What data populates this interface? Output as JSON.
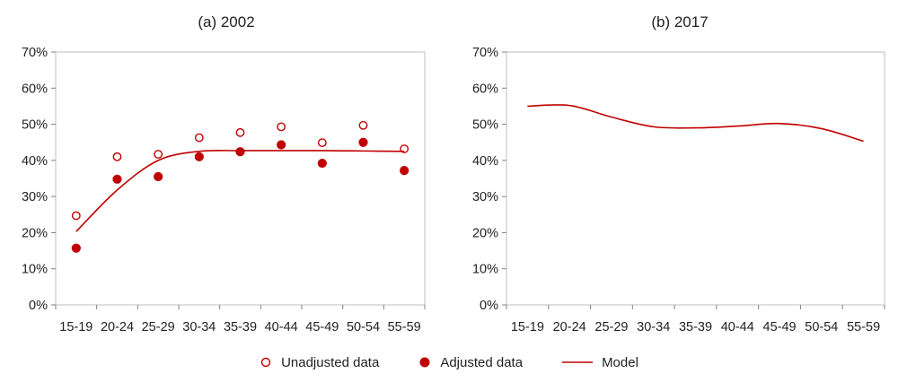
{
  "colors": {
    "series": "#c00000",
    "frame": "#bfbfbf",
    "axis": "#808080"
  },
  "chart_data": [
    {
      "type": "scatter",
      "title": "(a) 2002",
      "xlabel": "",
      "ylabel": "",
      "ylim": [
        0,
        0.7
      ],
      "y_ticks": [
        "0%",
        "10%",
        "20%",
        "30%",
        "40%",
        "50%",
        "60%",
        "70%"
      ],
      "categories": [
        "15-19",
        "20-24",
        "25-29",
        "30-34",
        "35-39",
        "40-44",
        "45-49",
        "50-54",
        "55-59"
      ],
      "grid": false,
      "series": [
        {
          "name": "Unadjusted data",
          "style": "open-marker",
          "values": [
            0.247,
            0.41,
            0.417,
            0.463,
            0.477,
            0.493,
            0.449,
            0.497,
            0.432
          ]
        },
        {
          "name": "Adjusted data",
          "style": "filled-marker",
          "values": [
            0.157,
            0.348,
            0.355,
            0.41,
            0.424,
            0.443,
            0.392,
            0.45,
            0.372
          ]
        },
        {
          "name": "Model",
          "style": "line",
          "values": [
            0.203,
            0.318,
            0.4,
            0.425,
            0.427,
            0.427,
            0.427,
            0.426,
            0.425
          ]
        }
      ]
    },
    {
      "type": "line",
      "title": "(b) 2017",
      "xlabel": "",
      "ylabel": "",
      "ylim": [
        0,
        0.7
      ],
      "y_ticks": [
        "0%",
        "10%",
        "20%",
        "30%",
        "40%",
        "50%",
        "60%",
        "70%"
      ],
      "categories": [
        "15-19",
        "20-24",
        "25-29",
        "30-34",
        "35-39",
        "40-44",
        "45-49",
        "50-54",
        "55-59"
      ],
      "grid": false,
      "series": [
        {
          "name": "Model",
          "style": "line",
          "values": [
            0.55,
            0.552,
            0.52,
            0.493,
            0.49,
            0.495,
            0.502,
            0.488,
            0.453
          ]
        }
      ]
    }
  ],
  "legend": {
    "position": "bottom-center",
    "items": [
      {
        "label": "Unadjusted data",
        "marker": "open-circle"
      },
      {
        "label": "Adjusted data",
        "marker": "filled-circle"
      },
      {
        "label": "Model",
        "marker": "line"
      }
    ]
  }
}
